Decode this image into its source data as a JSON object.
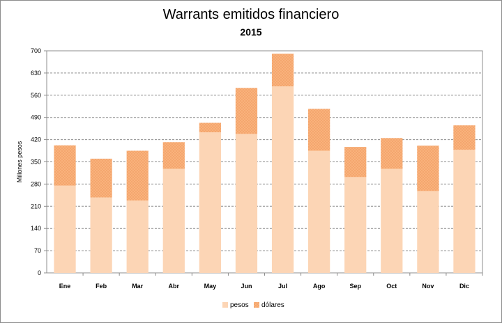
{
  "chart_data": {
    "type": "bar",
    "stacked": true,
    "title": "Warrants emitidos  financiero",
    "subtitle": "2015",
    "ylabel": "Millones pesos",
    "xlabel": "",
    "categories": [
      "Ene",
      "Feb",
      "Mar",
      "Abr",
      "May",
      "Jun",
      "Jul",
      "Ago",
      "Sep",
      "Oct",
      "Nov",
      "Dic"
    ],
    "series": [
      {
        "name": "pesos",
        "values": [
          275,
          238,
          228,
          328,
          443,
          438,
          588,
          385,
          302,
          328,
          258,
          388
        ],
        "color": "#fcd5b5"
      },
      {
        "name": "dólares",
        "values": [
          127,
          122,
          157,
          84,
          30,
          145,
          103,
          132,
          95,
          97,
          143,
          77
        ],
        "color": "#f9b27c"
      }
    ],
    "ylim": [
      0,
      700
    ],
    "yticks": [
      0,
      70,
      140,
      210,
      280,
      350,
      420,
      490,
      560,
      630,
      700
    ],
    "grid": true,
    "legend_position": "bottom"
  }
}
